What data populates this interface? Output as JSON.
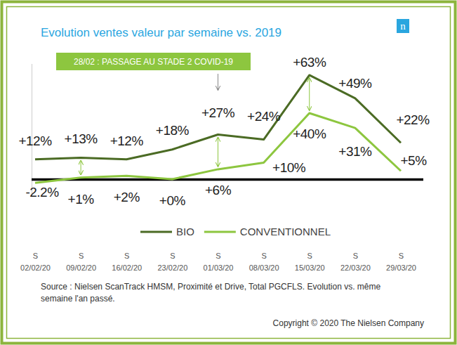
{
  "chart_data": {
    "type": "line",
    "title": "Evolution ventes valeur par semaine vs. 2019",
    "logo": "n",
    "categories": [
      "S 02/02/20",
      "S 09/02/20",
      "S 16/02/20",
      "S 23/02/20",
      "S 01/03/20",
      "S 08/03/20",
      "S 15/03/20",
      "S 22/03/20",
      "S 29/03/20"
    ],
    "series": [
      {
        "name": "BIO",
        "color": "#4b6b24",
        "values": [
          12,
          13,
          12,
          18,
          27,
          24,
          63,
          49,
          22
        ],
        "value_labels": [
          "+12%",
          "+13%",
          "+12%",
          "+18%",
          "+27%",
          "+24%",
          "+63%",
          "+49%",
          "+22%"
        ]
      },
      {
        "name": "CONVENTIONNEL",
        "color": "#8dc63f",
        "values": [
          -2.2,
          1,
          2,
          0,
          6,
          10,
          40,
          31,
          5
        ],
        "value_labels": [
          "-2.2%",
          "+1%",
          "+2%",
          "+0%",
          "+6%",
          "+10%",
          "+40%",
          "+31%",
          "+5%"
        ]
      }
    ],
    "ylim": [
      -10,
      70
    ],
    "yticks": [
      0
    ],
    "grid": true,
    "tick_labels": "x",
    "legend": "bottom",
    "data_labels": true,
    "annotations": [
      {
        "text": "28/02 : PASSAGE AU STADE 2 COVID-19",
        "x": "S 01/03/20"
      }
    ],
    "source": [
      "Source : Nielsen ScanTrack HMSM, Proximité et Drive, Total PGCFLS. Evolution vs. même",
      "semaine l'an passé."
    ],
    "copyright": "Copyright © 2020 The Nielsen Company"
  }
}
